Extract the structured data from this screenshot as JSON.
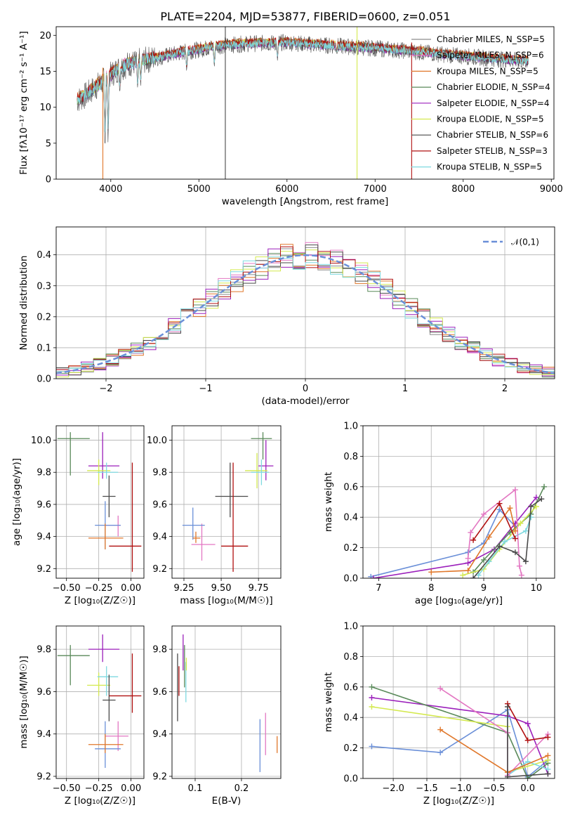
{
  "figure_title": "PLATE=2204, MJD=53877, FIBERID=0600, z=0.051",
  "colors": {
    "chabrier_miles": "#8c8c8c",
    "salpeter_miles": "#e377c2",
    "kroupa_miles": "#e0772a",
    "chabrier_elodie": "#5a8a5a",
    "salpeter_elodie": "#9b1fbb",
    "kroupa_elodie": "#d4e94f",
    "chabrier_stelib": "#4a4a4a",
    "salpeter_stelib": "#b01010",
    "kroupa_stelib": "#7fd9e0",
    "normal_curve": "#6a8fd8"
  },
  "chart_data": [
    {
      "type": "line",
      "id": "spectrum",
      "xlabel": "wavelength [Angstrom, rest frame]",
      "ylabel": "Flux [fλ10⁻¹⁷ erg cm⁻² s⁻¹ A⁻¹]",
      "xlim": [
        3380,
        9030
      ],
      "ylim": [
        0,
        21.2
      ],
      "xticks": [
        4000,
        5000,
        6000,
        7000,
        8000,
        9000
      ],
      "yticks": [
        0,
        5,
        10,
        15,
        20
      ],
      "data_range": [
        3620,
        8740
      ],
      "continuum": {
        "x": [
          3620,
          3700,
          3800,
          3900,
          4000,
          4100,
          4200,
          4300,
          4500,
          4800,
          5000,
          5200,
          5500,
          6000,
          6300,
          6600,
          7000,
          7400,
          7800,
          8200,
          8500,
          8740
        ],
        "y": [
          11.0,
          11.5,
          12.5,
          13.5,
          14.5,
          15.5,
          16.0,
          16.3,
          16.8,
          17.6,
          18.0,
          18.5,
          18.8,
          19.0,
          18.7,
          18.5,
          18.2,
          17.8,
          17.3,
          16.9,
          16.6,
          16.4
        ]
      },
      "absorption_lines": [
        {
          "x": 3934,
          "y": 3.5
        },
        {
          "x": 3969,
          "y": 4.5
        },
        {
          "x": 4102,
          "y": 12.0
        },
        {
          "x": 4305,
          "y": 12.5
        },
        {
          "x": 4340,
          "y": 13.0
        },
        {
          "x": 4861,
          "y": 15.0
        },
        {
          "x": 5175,
          "y": 15.5
        },
        {
          "x": 5892,
          "y": 16.5
        },
        {
          "x": 6563,
          "y": 17.5
        }
      ],
      "spikes": [
        {
          "x": 5300,
          "from": 0,
          "to": 21.2,
          "color": "#4a4a4a"
        },
        {
          "x": 6795,
          "from": 0,
          "to": 21.2,
          "color": "#d4e94f"
        },
        {
          "x": 3910,
          "from": 0,
          "to": 15.5,
          "color": "#e0772a"
        },
        {
          "x": 7415,
          "from": 0,
          "to": 19.0,
          "color": "#b01010"
        }
      ],
      "series": [
        {
          "name": "Chabrier MILES, N$_{SSP}$=5",
          "color": "#8c8c8c",
          "seed": 1,
          "offset": 0.0
        },
        {
          "name": "Salpeter MILES, N$_{SSP}$=6",
          "color": "#e377c2",
          "seed": 2,
          "offset": 0.2
        },
        {
          "name": "Kroupa MILES, N$_{SSP}$=5",
          "color": "#e0772a",
          "seed": 3,
          "offset": 0.3
        },
        {
          "name": "Chabrier ELODIE, N$_{SSP}$=4",
          "color": "#5a8a5a",
          "seed": 4,
          "offset": 0.1
        },
        {
          "name": "Salpeter ELODIE, N$_{SSP}$=4",
          "color": "#9b1fbb",
          "seed": 5,
          "offset": -0.1
        },
        {
          "name": "Kroupa ELODIE, N$_{SSP}$=5",
          "color": "#d4e94f",
          "seed": 6,
          "offset": 0.15
        },
        {
          "name": "Chabrier STELIB, N$_{SSP}$=6",
          "color": "#4a4a4a",
          "seed": 7,
          "offset": 0.0,
          "noise": true
        },
        {
          "name": "Salpeter STELIB, N$_{SSP}$=3",
          "color": "#b01010",
          "seed": 8,
          "offset": 0.2
        },
        {
          "name": "Kroupa STELIB, N$_{SSP}$=5",
          "color": "#7fd9e0",
          "seed": 9,
          "offset": 0.0
        }
      ]
    },
    {
      "type": "line",
      "id": "residuals",
      "xlabel": "(data-model)/error",
      "ylabel": "Normed distribution",
      "xlim": [
        -2.5,
        2.5
      ],
      "ylim": [
        0,
        0.49
      ],
      "xticks": [
        -2,
        -1,
        0,
        1,
        2
      ],
      "yticks": [
        0,
        0.1,
        0.2,
        0.3,
        0.4
      ],
      "bin_width": 0.125,
      "legend": "𝒩(0,1)",
      "normal": {
        "mu": 0,
        "sigma": 1
      }
    },
    {
      "type": "scatter",
      "id": "age_vs_Z",
      "xlabel": "Z [log₁₀(Z/Z☉)]",
      "ylabel": "age  [log₁₀(age/yr)]",
      "xlim": [
        -0.58,
        0.1
      ],
      "ylim": [
        9.14,
        10.09
      ],
      "xticks": [
        -0.5,
        -0.25,
        0.0
      ],
      "yticks": [
        9.2,
        9.4,
        9.6,
        9.8,
        10.0
      ],
      "points": [
        {
          "x": -0.47,
          "y": 10.01,
          "xlo": -0.57,
          "xhi": -0.32,
          "ylo": 9.78,
          "yhi": 10.05,
          "color": "#5a8a5a"
        },
        {
          "x": -0.22,
          "y": 9.84,
          "xlo": -0.33,
          "xhi": -0.09,
          "ylo": 9.76,
          "yhi": 10.05,
          "color": "#9b1fbb"
        },
        {
          "x": -0.25,
          "y": 9.81,
          "xlo": -0.34,
          "xhi": -0.16,
          "ylo": 9.72,
          "yhi": 9.88,
          "color": "#d4e94f"
        },
        {
          "x": -0.19,
          "y": 9.8,
          "xlo": -0.26,
          "xhi": -0.1,
          "ylo": 9.76,
          "yhi": 9.86,
          "color": "#7fd9e0"
        },
        {
          "x": -0.17,
          "y": 9.65,
          "xlo": -0.22,
          "xhi": -0.12,
          "ylo": 9.52,
          "yhi": 9.78,
          "color": "#4a4a4a"
        },
        {
          "x": -0.1,
          "y": 9.47,
          "xlo": -0.2,
          "xhi": -0.08,
          "ylo": 9.4,
          "yhi": 9.53,
          "color": "#e377c2"
        },
        {
          "x": -0.2,
          "y": 9.47,
          "xlo": -0.28,
          "xhi": -0.08,
          "ylo": 9.32,
          "yhi": 9.62,
          "color": "#6a8fd8"
        },
        {
          "x": -0.2,
          "y": 9.39,
          "xlo": -0.33,
          "xhi": -0.06,
          "ylo": 9.32,
          "yhi": 9.48,
          "color": "#e0772a"
        },
        {
          "x": 0.01,
          "y": 9.34,
          "xlo": -0.17,
          "xhi": 0.08,
          "ylo": 9.18,
          "yhi": 9.86,
          "color": "#b01010"
        }
      ]
    },
    {
      "type": "scatter",
      "id": "age_vs_mass",
      "xlabel": "mass [log₁₀(M/M☉)]",
      "ylabel": "",
      "xlim": [
        9.17,
        9.9
      ],
      "ylim": [
        9.14,
        10.09
      ],
      "xticks": [
        9.25,
        9.5,
        9.75
      ],
      "yticks": [
        9.2,
        9.4,
        9.6,
        9.8,
        10.0
      ],
      "points": [
        {
          "x": 9.78,
          "y": 10.01,
          "xlo": 9.7,
          "xhi": 9.84,
          "ylo": 9.88,
          "yhi": 10.05,
          "color": "#5a8a5a"
        },
        {
          "x": 9.8,
          "y": 9.84,
          "xlo": 9.75,
          "xhi": 9.85,
          "ylo": 9.75,
          "yhi": 10.0,
          "color": "#9b1fbb"
        },
        {
          "x": 9.74,
          "y": 9.81,
          "xlo": 9.66,
          "xhi": 9.81,
          "ylo": 9.7,
          "yhi": 9.92,
          "color": "#d4e94f"
        },
        {
          "x": 9.77,
          "y": 9.8,
          "xlo": 9.7,
          "xhi": 9.82,
          "ylo": 9.72,
          "yhi": 9.88,
          "color": "#7fd9e0"
        },
        {
          "x": 9.56,
          "y": 9.65,
          "xlo": 9.46,
          "xhi": 9.68,
          "ylo": 9.52,
          "yhi": 9.86,
          "color": "#4a4a4a"
        },
        {
          "x": 9.37,
          "y": 9.35,
          "xlo": 9.3,
          "xhi": 9.46,
          "ylo": 9.25,
          "yhi": 9.48,
          "color": "#e377c2"
        },
        {
          "x": 9.31,
          "y": 9.47,
          "xlo": 9.24,
          "xhi": 9.39,
          "ylo": 9.38,
          "yhi": 9.58,
          "color": "#6a8fd8"
        },
        {
          "x": 9.33,
          "y": 9.39,
          "xlo": 9.31,
          "xhi": 9.36,
          "ylo": 9.36,
          "yhi": 9.43,
          "color": "#e0772a"
        },
        {
          "x": 9.58,
          "y": 9.34,
          "xlo": 9.5,
          "xhi": 9.68,
          "ylo": 9.18,
          "yhi": 9.86,
          "color": "#b01010"
        }
      ]
    },
    {
      "type": "line",
      "id": "weight_vs_age",
      "xlabel": "age  [log₁₀(age/yr)]",
      "ylabel": "mass weight",
      "xlim": [
        6.7,
        10.35
      ],
      "ylim": [
        0,
        1.0
      ],
      "xticks": [
        7,
        8,
        9,
        10
      ],
      "yticks": [
        0.0,
        0.2,
        0.4,
        0.6,
        0.8,
        1.0
      ],
      "series": [
        {
          "color": "#6a8fd8",
          "x": [
            6.85,
            8.7,
            9.0,
            9.3,
            9.6
          ],
          "y": [
            0.01,
            0.17,
            0.23,
            0.45,
            0.34
          ]
        },
        {
          "color": "#9b1fbb",
          "x": [
            6.9,
            8.7,
            9.2,
            9.6,
            10.0
          ],
          "y": [
            0.0,
            0.1,
            0.19,
            0.36,
            0.53
          ]
        },
        {
          "color": "#5a8a5a",
          "x": [
            8.8,
            9.0,
            9.5,
            9.9,
            10.15
          ],
          "y": [
            0.04,
            0.12,
            0.3,
            0.42,
            0.6
          ]
        },
        {
          "color": "#d4e94f",
          "x": [
            8.6,
            9.0,
            9.3,
            9.7,
            10.0
          ],
          "y": [
            0.02,
            0.06,
            0.19,
            0.36,
            0.47
          ]
        },
        {
          "color": "#7fd9e0",
          "x": [
            8.9,
            9.1,
            9.4,
            9.8,
            9.9
          ],
          "y": [
            0.02,
            0.11,
            0.24,
            0.31,
            0.4
          ]
        },
        {
          "color": "#e377c2",
          "x": [
            8.7,
            8.75,
            9.0,
            9.6,
            9.68,
            9.72
          ],
          "y": [
            0.13,
            0.3,
            0.42,
            0.58,
            0.08,
            0.02
          ]
        },
        {
          "color": "#e0772a",
          "x": [
            8.0,
            8.7,
            9.1,
            9.5,
            9.6
          ],
          "y": [
            0.04,
            0.05,
            0.27,
            0.46,
            0.31
          ]
        },
        {
          "color": "#b01010",
          "x": [
            8.8,
            9.3,
            9.6
          ],
          "y": [
            0.25,
            0.49,
            0.26
          ]
        },
        {
          "color": "#4a4a4a",
          "x": [
            8.8,
            9.3,
            9.6,
            9.8,
            9.9,
            10.1
          ],
          "y": [
            0.0,
            0.21,
            0.17,
            0.11,
            0.47,
            0.52
          ]
        }
      ]
    },
    {
      "type": "scatter",
      "id": "mass_vs_Z",
      "xlabel": "Z [log₁₀(Z/Z☉)]",
      "ylabel": "mass [log₁₀(M/M☉)]",
      "xlim": [
        -0.58,
        0.1
      ],
      "ylim": [
        9.19,
        9.91
      ],
      "xticks": [
        -0.5,
        -0.25,
        0.0
      ],
      "yticks": [
        9.2,
        9.4,
        9.6,
        9.8
      ],
      "points": [
        {
          "x": -0.47,
          "y": 9.77,
          "xlo": -0.57,
          "xhi": -0.32,
          "ylo": 9.63,
          "yhi": 9.82,
          "color": "#5a8a5a"
        },
        {
          "x": -0.22,
          "y": 9.8,
          "xlo": -0.33,
          "xhi": -0.09,
          "ylo": 9.74,
          "yhi": 9.87,
          "color": "#9b1fbb"
        },
        {
          "x": -0.25,
          "y": 9.63,
          "xlo": -0.34,
          "xhi": -0.16,
          "ylo": 9.58,
          "yhi": 9.69,
          "color": "#d4e94f"
        },
        {
          "x": -0.19,
          "y": 9.67,
          "xlo": -0.26,
          "xhi": -0.1,
          "ylo": 9.58,
          "yhi": 9.72,
          "color": "#7fd9e0"
        },
        {
          "x": -0.17,
          "y": 9.56,
          "xlo": -0.22,
          "xhi": -0.12,
          "ylo": 9.46,
          "yhi": 9.68,
          "color": "#4a4a4a"
        },
        {
          "x": -0.1,
          "y": 9.39,
          "xlo": -0.2,
          "xhi": -0.02,
          "ylo": 9.32,
          "yhi": 9.46,
          "color": "#e377c2"
        },
        {
          "x": -0.2,
          "y": 9.33,
          "xlo": -0.28,
          "xhi": -0.08,
          "ylo": 9.24,
          "yhi": 9.46,
          "color": "#6a8fd8"
        },
        {
          "x": -0.2,
          "y": 9.35,
          "xlo": -0.33,
          "xhi": -0.06,
          "ylo": 9.31,
          "yhi": 9.4,
          "color": "#e0772a"
        },
        {
          "x": 0.01,
          "y": 9.58,
          "xlo": -0.17,
          "xhi": 0.08,
          "ylo": 9.5,
          "yhi": 9.78,
          "color": "#b01010"
        }
      ]
    },
    {
      "type": "scatter",
      "id": "mass_vs_ebv",
      "xlabel": "E(B-V)",
      "ylabel": "",
      "xlim": [
        0.05,
        0.285
      ],
      "ylim": [
        9.19,
        9.91
      ],
      "xticks": [
        0.1,
        0.2
      ],
      "yticks": [
        9.2,
        9.4,
        9.6,
        9.8
      ],
      "points": [
        {
          "x": 0.062,
          "y": 9.62,
          "ylo": 9.46,
          "yhi": 9.78,
          "color": "#4a4a4a"
        },
        {
          "x": 0.065,
          "y": 9.65,
          "ylo": 9.58,
          "yhi": 9.72,
          "color": "#b01010"
        },
        {
          "x": 0.074,
          "y": 9.79,
          "ylo": 9.7,
          "yhi": 9.87,
          "color": "#9b1fbb"
        },
        {
          "x": 0.077,
          "y": 9.7,
          "ylo": 9.62,
          "yhi": 9.82,
          "color": "#5a8a5a"
        },
        {
          "x": 0.08,
          "y": 9.64,
          "ylo": 9.55,
          "yhi": 9.74,
          "color": "#7fd9e0"
        },
        {
          "x": 0.081,
          "y": 9.73,
          "ylo": 9.7,
          "yhi": 9.76,
          "color": "#d4e94f"
        },
        {
          "x": 0.24,
          "y": 9.35,
          "ylo": 9.22,
          "yhi": 9.47,
          "color": "#6a8fd8"
        },
        {
          "x": 0.252,
          "y": 9.39,
          "ylo": 9.3,
          "yhi": 9.5,
          "color": "#e377c2"
        },
        {
          "x": 0.277,
          "y": 9.35,
          "ylo": 9.31,
          "yhi": 9.39,
          "color": "#e0772a"
        }
      ]
    },
    {
      "type": "line",
      "id": "weight_vs_Z",
      "xlabel": "Z [log₁₀(Z/Z☉)]",
      "ylabel": "mass weight",
      "xlim": [
        -2.45,
        0.4
      ],
      "ylim": [
        0,
        1.0
      ],
      "xticks": [
        -2.0,
        -1.5,
        -1.0,
        -0.5,
        0.0
      ],
      "yticks": [
        0.0,
        0.2,
        0.4,
        0.6,
        0.8,
        1.0
      ],
      "series": [
        {
          "color": "#6a8fd8",
          "x": [
            -2.32,
            -1.3,
            -0.3,
            0.0,
            0.3
          ],
          "y": [
            0.21,
            0.17,
            0.45,
            0.01,
            0.12
          ]
        },
        {
          "color": "#9b1fbb",
          "x": [
            -2.32,
            -0.3,
            0.0,
            0.3
          ],
          "y": [
            0.53,
            0.41,
            0.36,
            0.03
          ]
        },
        {
          "color": "#5a8a5a",
          "x": [
            -2.32,
            -0.3,
            0.0,
            0.3
          ],
          "y": [
            0.6,
            0.3,
            0.0,
            0.1
          ]
        },
        {
          "color": "#d4e94f",
          "x": [
            -2.32,
            -0.3,
            -0.3,
            0.3
          ],
          "y": [
            0.47,
            0.34,
            0.04,
            0.12
          ]
        },
        {
          "color": "#7fd9e0",
          "x": [
            -0.3,
            -0.3,
            0.0,
            0.3
          ],
          "y": [
            0.4,
            0.02,
            0.11,
            0.06
          ]
        },
        {
          "color": "#e377c2",
          "x": [
            -1.3,
            -0.3,
            -0.3,
            0.3
          ],
          "y": [
            0.59,
            0.3,
            0.02,
            0.29
          ]
        },
        {
          "color": "#e0772a",
          "x": [
            -1.3,
            -0.3,
            0.3
          ],
          "y": [
            0.32,
            0.04,
            0.15
          ]
        },
        {
          "color": "#b01010",
          "x": [
            -0.3,
            0.0,
            0.3
          ],
          "y": [
            0.49,
            0.25,
            0.27
          ]
        },
        {
          "color": "#4a4a4a",
          "x": [
            -0.3,
            -0.3,
            0.3
          ],
          "y": [
            0.47,
            0.01,
            0.03
          ]
        }
      ]
    }
  ]
}
